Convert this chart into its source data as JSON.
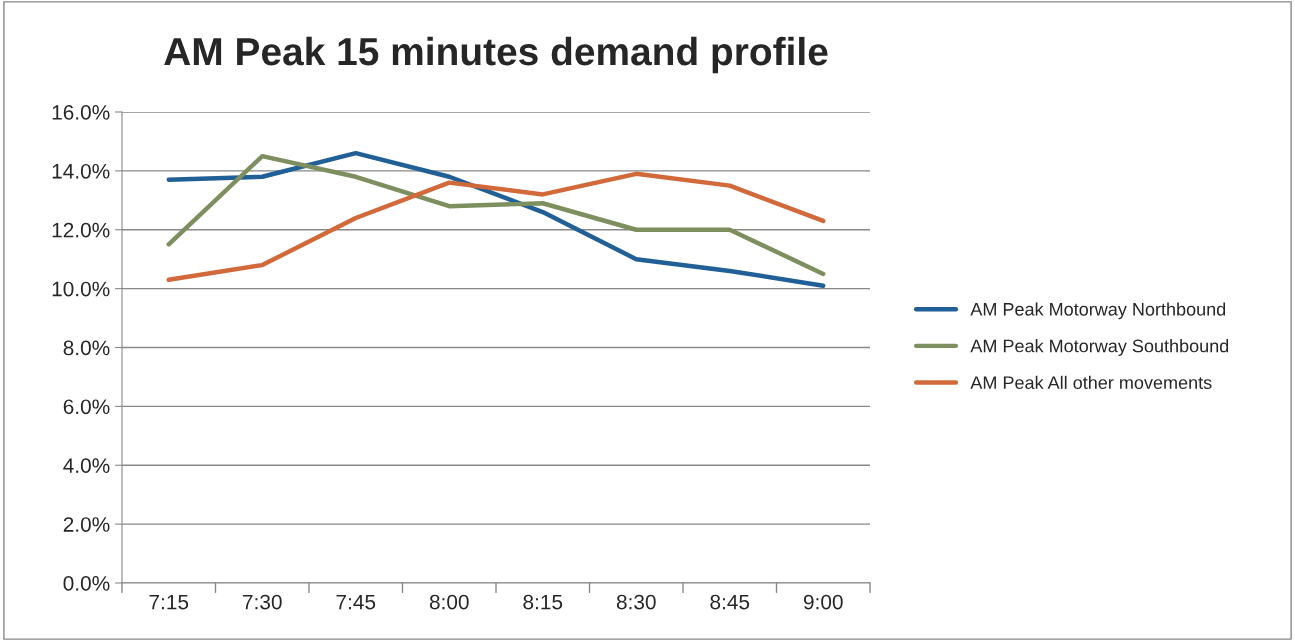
{
  "chart_data": {
    "type": "line",
    "title": "AM Peak 15 minutes demand profile",
    "categories": [
      "7:15",
      "7:30",
      "7:45",
      "8:00",
      "8:15",
      "8:30",
      "8:45",
      "9:00"
    ],
    "series": [
      {
        "name": "AM Peak Motorway Northbound",
        "color": "#215f97",
        "values": [
          13.7,
          13.8,
          14.6,
          13.8,
          12.6,
          11.0,
          10.6,
          10.1
        ]
      },
      {
        "name": "AM Peak Motorway Southbound",
        "color": "#7e8f5f",
        "values": [
          11.5,
          14.5,
          13.8,
          12.8,
          12.9,
          12.0,
          12.0,
          10.5
        ]
      },
      {
        "name": "AM Peak All other movements",
        "color": "#d2693a",
        "values": [
          10.3,
          10.8,
          12.4,
          13.6,
          13.2,
          13.9,
          13.5,
          12.3
        ]
      }
    ],
    "ylim": [
      0,
      16
    ],
    "yticks": [
      {
        "value": 0,
        "label": "0.0%"
      },
      {
        "value": 2,
        "label": "2.0%"
      },
      {
        "value": 4,
        "label": "4.0%"
      },
      {
        "value": 6,
        "label": "6.0%"
      },
      {
        "value": 8,
        "label": "8.0%"
      },
      {
        "value": 10,
        "label": "10.0%"
      },
      {
        "value": 12,
        "label": "12.0%"
      },
      {
        "value": 14,
        "label": "14.0%"
      },
      {
        "value": 16,
        "label": "16.0%"
      }
    ],
    "grid": "y",
    "legend": "right",
    "marker": "none",
    "line_style": "solid"
  }
}
